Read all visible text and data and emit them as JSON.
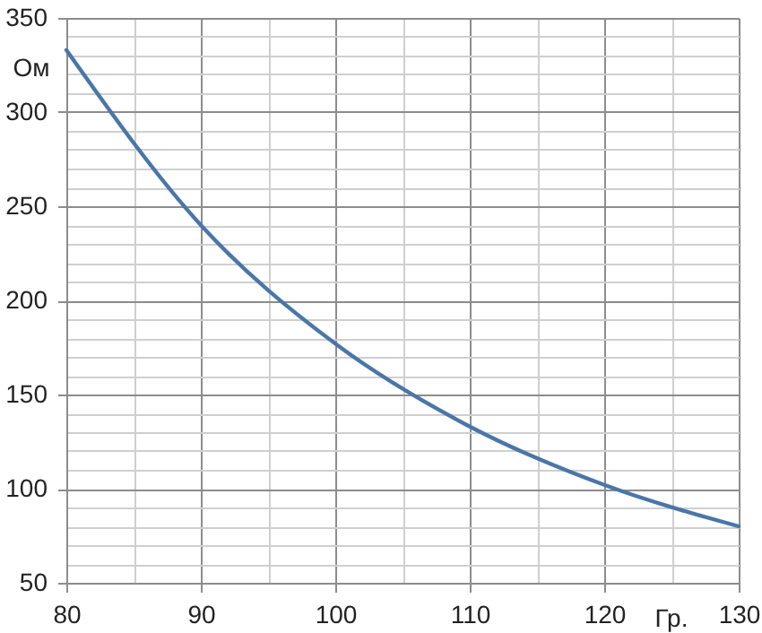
{
  "chart_data": {
    "type": "line",
    "xlabel": "Гр.",
    "ylabel": "Ом",
    "x": [
      80,
      90,
      100,
      110,
      120,
      130
    ],
    "series": [
      {
        "color": "#4a76a8",
        "values": [
          333,
          240,
          177,
          133,
          102,
          80
        ]
      }
    ],
    "xlim": [
      80,
      130
    ],
    "xticks": [
      80,
      {
        "value": 85,
        "label": null
      },
      90,
      {
        "value": 95,
        "label": null
      },
      100,
      {
        "value": 105,
        "label": null
      },
      110,
      {
        "value": 115,
        "label": null
      },
      120,
      {
        "value": 125,
        "label": null
      },
      130
    ],
    "ylim": [
      50,
      350
    ],
    "yticks": [
      50,
      {
        "value": 60,
        "label": null
      },
      {
        "value": 70,
        "label": null
      },
      {
        "value": 80,
        "label": null
      },
      {
        "value": 90,
        "label": null
      },
      100,
      {
        "value": 110,
        "label": null
      },
      {
        "value": 120,
        "label": null
      },
      {
        "value": 130,
        "label": null
      },
      {
        "value": 140,
        "label": null
      },
      150,
      {
        "value": 160,
        "label": null
      },
      {
        "value": 170,
        "label": null
      },
      {
        "value": 180,
        "label": null
      },
      {
        "value": 190,
        "label": null
      },
      200,
      {
        "value": 210,
        "label": null
      },
      {
        "value": 220,
        "label": null
      },
      {
        "value": 230,
        "label": null
      },
      {
        "value": 240,
        "label": null
      },
      250,
      {
        "value": 260,
        "label": null
      },
      {
        "value": 270,
        "label": null
      },
      {
        "value": 280,
        "label": null
      },
      {
        "value": 290,
        "label": null
      },
      300,
      {
        "value": 310,
        "label": null
      },
      {
        "value": 320,
        "label": null
      },
      {
        "value": 330,
        "label": null
      },
      {
        "value": 340,
        "label": null
      },
      350
    ],
    "grid": true,
    "marker": "none",
    "line_style": "solid"
  }
}
